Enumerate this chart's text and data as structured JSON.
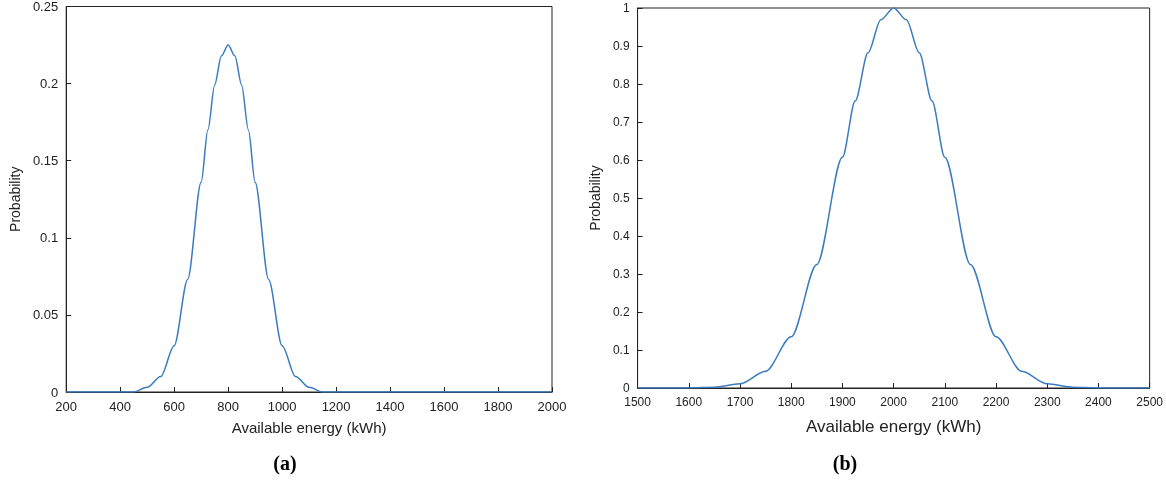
{
  "chart_data": [
    {
      "type": "line",
      "xlabel": "Available energy (kWh)",
      "ylabel": "Probability",
      "annotations": [
        "(a)"
      ],
      "marker": "none",
      "line_style": "solid",
      "x": [
        200,
        300,
        400,
        450,
        500,
        550,
        600,
        650,
        700,
        725,
        750,
        775,
        800,
        825,
        850,
        875,
        900,
        950,
        1000,
        1050,
        1100,
        1150,
        1200,
        1400,
        1600,
        1800,
        2000
      ],
      "series": [
        {
          "color": "#3b7bbf",
          "values": [
            0,
            0,
            0,
            0,
            0.003,
            0.01,
            0.03,
            0.073,
            0.136,
            0.17,
            0.199,
            0.218,
            0.225,
            0.218,
            0.199,
            0.17,
            0.136,
            0.073,
            0.03,
            0.01,
            0.003,
            0,
            0,
            0,
            0,
            0,
            0
          ]
        }
      ],
      "xlim": [
        200,
        2000
      ],
      "xticks": [
        200,
        400,
        600,
        800,
        1000,
        1200,
        1400,
        1600,
        1800,
        2000
      ],
      "ylim": [
        0,
        0.25
      ],
      "yticks": [
        0,
        0.05,
        0.1,
        0.15,
        0.2,
        0.25
      ]
    },
    {
      "type": "line",
      "xlabel": "Available energy (kWh)",
      "ylabel": "Probability",
      "annotations": [
        "(b)"
      ],
      "marker": "none",
      "line_style": "solid",
      "x": [
        1500,
        1600,
        1650,
        1700,
        1750,
        1800,
        1850,
        1900,
        1925,
        1950,
        1975,
        2000,
        2025,
        2050,
        2075,
        2100,
        2150,
        2200,
        2250,
        2300,
        2350,
        2400,
        2500
      ],
      "series": [
        {
          "color": "#3b7bbf",
          "values": [
            0,
            0,
            0.002,
            0.011,
            0.044,
            0.135,
            0.325,
            0.607,
            0.755,
            0.882,
            0.969,
            1,
            0.969,
            0.882,
            0.755,
            0.607,
            0.325,
            0.135,
            0.044,
            0.011,
            0.002,
            0,
            0
          ]
        }
      ],
      "xlim": [
        1500,
        2500
      ],
      "xticks": [
        1500,
        1600,
        1700,
        1800,
        1900,
        2000,
        2100,
        2200,
        2300,
        2400,
        2500
      ],
      "ylim": [
        0,
        1
      ],
      "yticks": [
        0,
        0.1,
        0.2,
        0.3,
        0.4,
        0.5,
        0.6,
        0.7,
        0.8,
        0.9,
        1
      ]
    }
  ]
}
